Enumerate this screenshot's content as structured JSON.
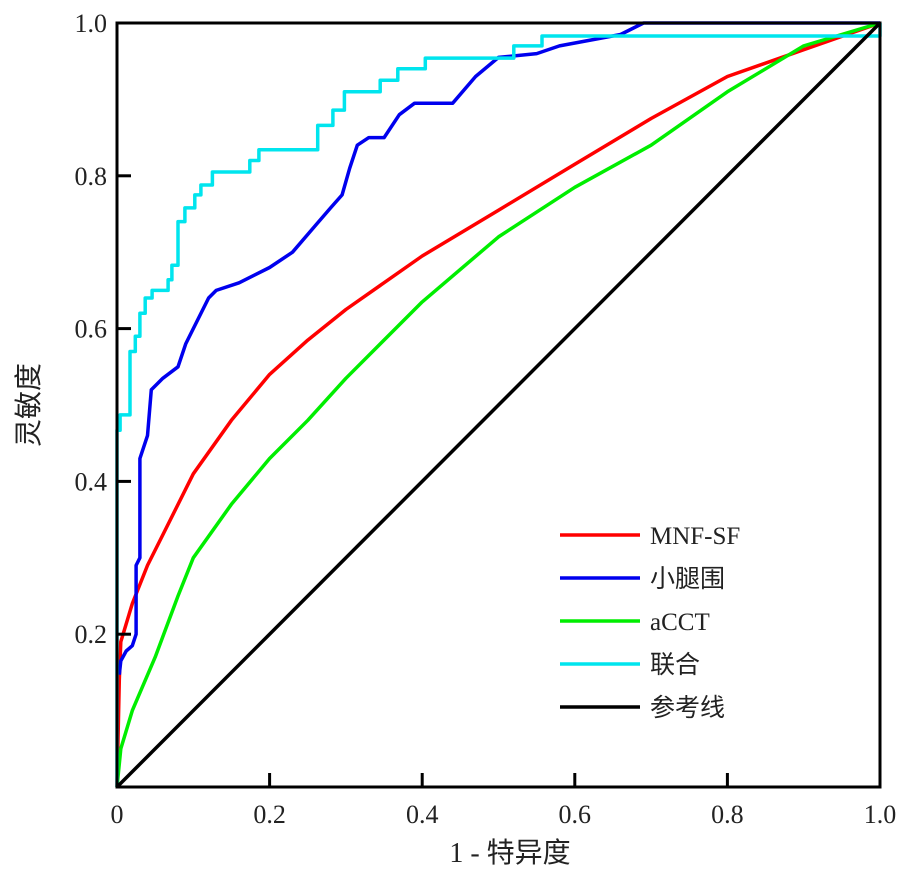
{
  "chart_data": {
    "type": "line",
    "title": "",
    "xlabel": "1 - 特异度",
    "ylabel": "灵敏度",
    "xlim": [
      0,
      1
    ],
    "ylim": [
      0,
      1
    ],
    "xticks": [
      0,
      0.2,
      0.4,
      0.6,
      0.8,
      1.0
    ],
    "xtick_labels": [
      "0",
      "0.2",
      "0.4",
      "0.6",
      "0.8",
      "1.0"
    ],
    "yticks": [
      0.2,
      0.4,
      0.6,
      0.8,
      1.0
    ],
    "ytick_labels": [
      "0.2",
      "0.4",
      "0.6",
      "0.8",
      "1.0"
    ],
    "grid": false,
    "legend_position": "bottom-right",
    "series": [
      {
        "name": "MNF-SF",
        "color": "#ff0000",
        "step": false,
        "points": [
          [
            0,
            0
          ],
          [
            0.003,
            0.14
          ],
          [
            0.005,
            0.19
          ],
          [
            0.02,
            0.24
          ],
          [
            0.04,
            0.29
          ],
          [
            0.06,
            0.33
          ],
          [
            0.1,
            0.41
          ],
          [
            0.15,
            0.48
          ],
          [
            0.2,
            0.54
          ],
          [
            0.25,
            0.585
          ],
          [
            0.3,
            0.625
          ],
          [
            0.4,
            0.695
          ],
          [
            0.5,
            0.755
          ],
          [
            0.6,
            0.815
          ],
          [
            0.7,
            0.875
          ],
          [
            0.8,
            0.93
          ],
          [
            0.9,
            0.965
          ],
          [
            1,
            1
          ]
        ]
      },
      {
        "name": "小腿围",
        "color": "#0000ee",
        "step": false,
        "points": [
          [
            0.003,
            0.147
          ],
          [
            0.005,
            0.165
          ],
          [
            0.012,
            0.178
          ],
          [
            0.02,
            0.185
          ],
          [
            0.025,
            0.2
          ],
          [
            0.025,
            0.29
          ],
          [
            0.03,
            0.3
          ],
          [
            0.03,
            0.43
          ],
          [
            0.04,
            0.46
          ],
          [
            0.045,
            0.52
          ],
          [
            0.06,
            0.535
          ],
          [
            0.08,
            0.55
          ],
          [
            0.09,
            0.58
          ],
          [
            0.1,
            0.6
          ],
          [
            0.12,
            0.64
          ],
          [
            0.13,
            0.65
          ],
          [
            0.16,
            0.66
          ],
          [
            0.2,
            0.68
          ],
          [
            0.23,
            0.7
          ],
          [
            0.26,
            0.735
          ],
          [
            0.28,
            0.758
          ],
          [
            0.295,
            0.775
          ],
          [
            0.305,
            0.81
          ],
          [
            0.315,
            0.84
          ],
          [
            0.33,
            0.85
          ],
          [
            0.35,
            0.85
          ],
          [
            0.37,
            0.88
          ],
          [
            0.39,
            0.895
          ],
          [
            0.44,
            0.895
          ],
          [
            0.47,
            0.93
          ],
          [
            0.5,
            0.955
          ],
          [
            0.55,
            0.96
          ],
          [
            0.58,
            0.97
          ],
          [
            0.66,
            0.985
          ],
          [
            0.69,
            1.0
          ],
          [
            1,
            1
          ]
        ]
      },
      {
        "name": "aCCT",
        "color": "#00ee00",
        "step": false,
        "points": [
          [
            0,
            0
          ],
          [
            0.005,
            0.05
          ],
          [
            0.02,
            0.1
          ],
          [
            0.05,
            0.17
          ],
          [
            0.08,
            0.25
          ],
          [
            0.1,
            0.3
          ],
          [
            0.15,
            0.37
          ],
          [
            0.2,
            0.43
          ],
          [
            0.25,
            0.48
          ],
          [
            0.3,
            0.535
          ],
          [
            0.4,
            0.635
          ],
          [
            0.5,
            0.72
          ],
          [
            0.6,
            0.785
          ],
          [
            0.7,
            0.84
          ],
          [
            0.8,
            0.91
          ],
          [
            0.9,
            0.97
          ],
          [
            1,
            1
          ]
        ]
      },
      {
        "name": "联合",
        "color": "#00e5ee",
        "step": true,
        "points": [
          [
            0,
            0
          ],
          [
            0,
            0.467
          ],
          [
            0.004,
            0.467
          ],
          [
            0.004,
            0.487
          ],
          [
            0.017,
            0.487
          ],
          [
            0.017,
            0.57
          ],
          [
            0.024,
            0.57
          ],
          [
            0.024,
            0.59
          ],
          [
            0.03,
            0.59
          ],
          [
            0.03,
            0.62
          ],
          [
            0.037,
            0.62
          ],
          [
            0.037,
            0.64
          ],
          [
            0.046,
            0.64
          ],
          [
            0.046,
            0.65
          ],
          [
            0.067,
            0.65
          ],
          [
            0.067,
            0.664
          ],
          [
            0.072,
            0.664
          ],
          [
            0.072,
            0.683
          ],
          [
            0.08,
            0.683
          ],
          [
            0.08,
            0.74
          ],
          [
            0.089,
            0.74
          ],
          [
            0.089,
            0.758
          ],
          [
            0.102,
            0.758
          ],
          [
            0.102,
            0.775
          ],
          [
            0.11,
            0.775
          ],
          [
            0.11,
            0.788
          ],
          [
            0.125,
            0.788
          ],
          [
            0.125,
            0.805
          ],
          [
            0.174,
            0.805
          ],
          [
            0.174,
            0.82
          ],
          [
            0.186,
            0.82
          ],
          [
            0.186,
            0.834
          ],
          [
            0.263,
            0.834
          ],
          [
            0.263,
            0.866
          ],
          [
            0.283,
            0.866
          ],
          [
            0.283,
            0.886
          ],
          [
            0.298,
            0.886
          ],
          [
            0.298,
            0.91
          ],
          [
            0.345,
            0.91
          ],
          [
            0.345,
            0.925
          ],
          [
            0.368,
            0.925
          ],
          [
            0.368,
            0.94
          ],
          [
            0.404,
            0.94
          ],
          [
            0.404,
            0.954
          ],
          [
            0.52,
            0.954
          ],
          [
            0.52,
            0.97
          ],
          [
            0.557,
            0.97
          ],
          [
            0.557,
            0.983
          ],
          [
            1,
            0.983
          ],
          [
            1,
            1
          ]
        ]
      },
      {
        "name": "参考线",
        "color": "#000000",
        "step": false,
        "points": [
          [
            0,
            0
          ],
          [
            1,
            1
          ]
        ]
      }
    ]
  }
}
